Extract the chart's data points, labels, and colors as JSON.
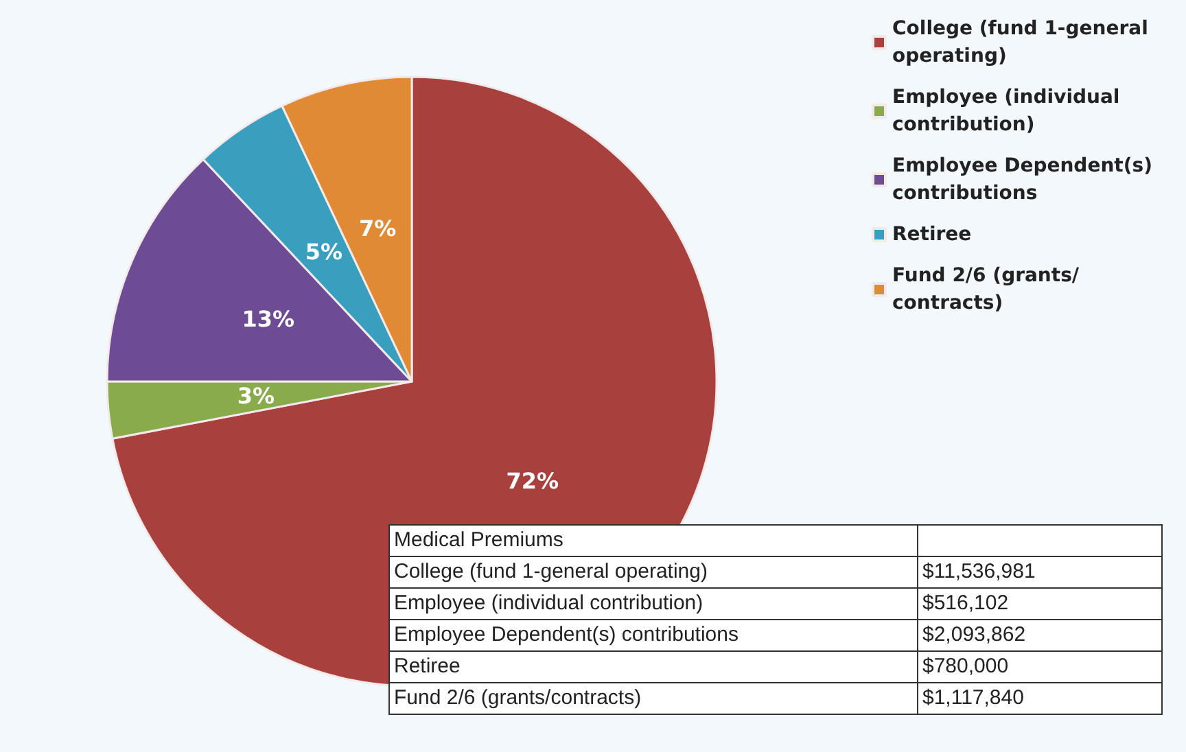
{
  "chart_data": {
    "type": "pie",
    "title": "Medical Premiums",
    "categories": [
      "College (fund 1-general operating)",
      "Employee (individual contribution)",
      "Employee Dependent(s) contributions",
      "Retiree",
      "Fund 2/6 (grants/contracts)"
    ],
    "values": [
      72,
      3,
      13,
      5,
      7
    ],
    "value_labels": [
      "72%",
      "3%",
      "13%",
      "5%",
      "7%"
    ],
    "colors": [
      "#a8403d",
      "#8aab4c",
      "#6e4c95",
      "#3a9fbf",
      "#e08a36"
    ],
    "annotations": [
      "$11,536,981",
      "$516,102",
      "$2,093,862",
      "$780,000",
      "$1,117,840"
    ],
    "legend": "top right"
  }
}
